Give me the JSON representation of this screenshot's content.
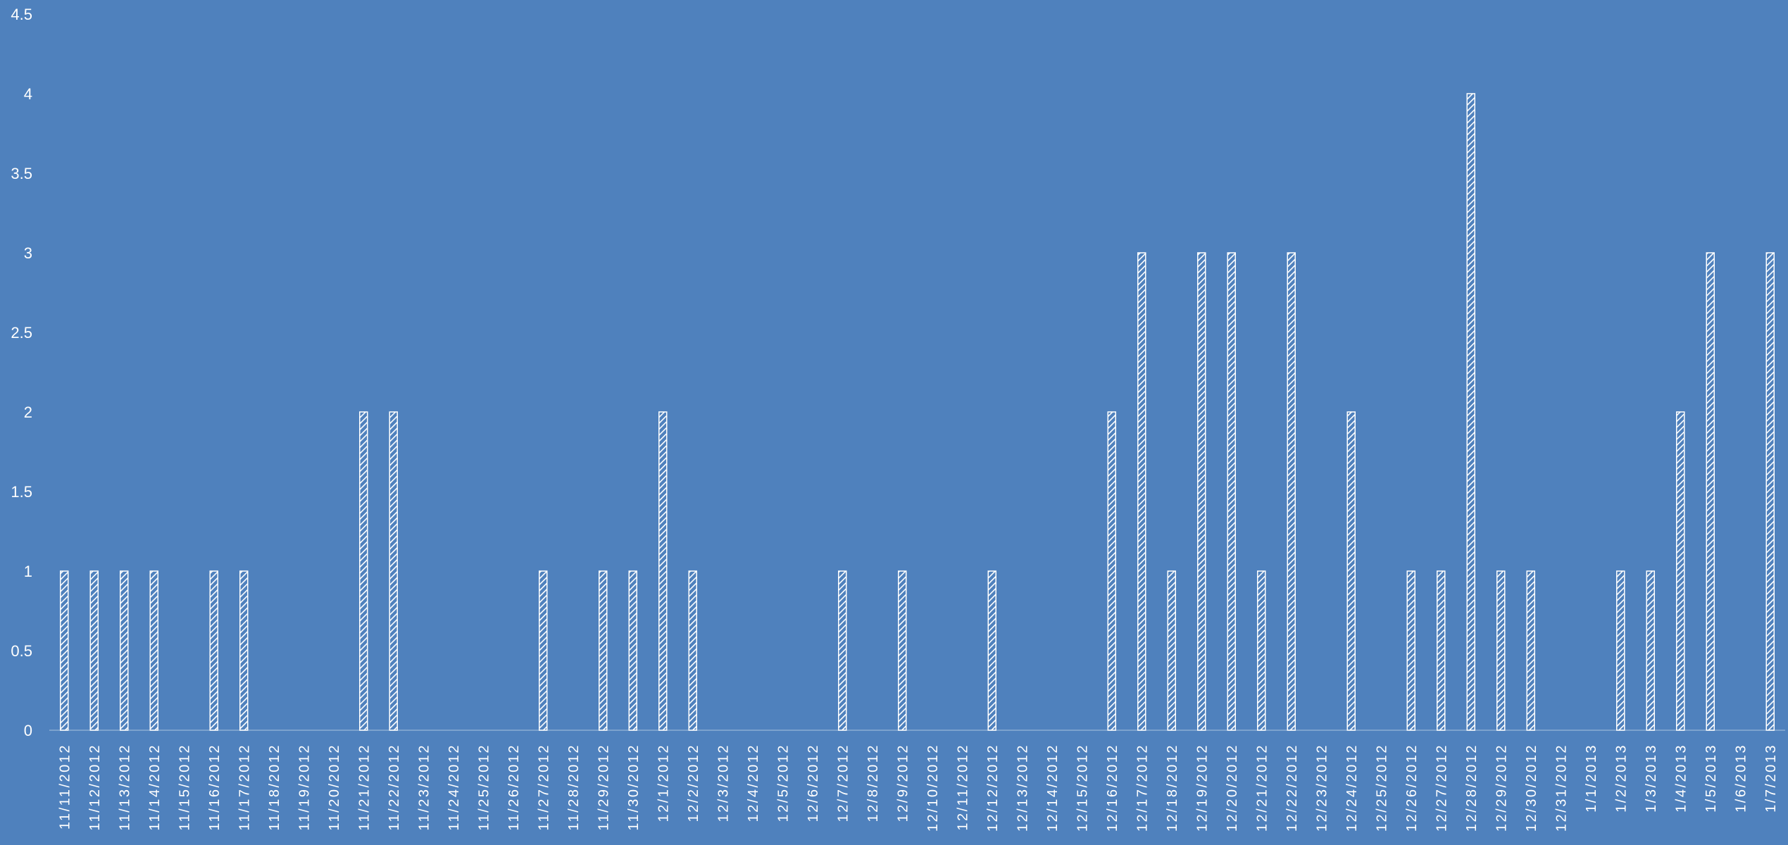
{
  "chart_data": {
    "type": "bar",
    "title": "",
    "xlabel": "",
    "ylabel": "",
    "ylim": [
      0,
      4.5
    ],
    "ytick_step": 0.5,
    "yticks": [
      "0",
      "0.5",
      "1",
      "1.5",
      "2",
      "2.5",
      "3",
      "3.5",
      "4",
      "4.5"
    ],
    "grid": false,
    "legend": "none",
    "categories": [
      "11/11/2012",
      "11/12/2012",
      "11/13/2012",
      "11/14/2012",
      "11/15/2012",
      "11/16/2012",
      "11/17/2012",
      "11/18/2012",
      "11/19/2012",
      "11/20/2012",
      "11/21/2012",
      "11/22/2012",
      "11/23/2012",
      "11/24/2012",
      "11/25/2012",
      "11/26/2012",
      "11/27/2012",
      "11/28/2012",
      "11/29/2012",
      "11/30/2012",
      "12/1/2012",
      "12/2/2012",
      "12/3/2012",
      "12/4/2012",
      "12/5/2012",
      "12/6/2012",
      "12/7/2012",
      "12/8/2012",
      "12/9/2012",
      "12/10/2012",
      "12/11/2012",
      "12/12/2012",
      "12/13/2012",
      "12/14/2012",
      "12/15/2012",
      "12/16/2012",
      "12/17/2012",
      "12/18/2012",
      "12/19/2012",
      "12/20/2012",
      "12/21/2012",
      "12/22/2012",
      "12/23/2012",
      "12/24/2012",
      "12/25/2012",
      "12/26/2012",
      "12/27/2012",
      "12/28/2012",
      "12/29/2012",
      "12/30/2012",
      "12/31/2012",
      "1/1/2013",
      "1/2/2013",
      "1/3/2013",
      "1/4/2013",
      "1/5/2013",
      "1/6/2013",
      "1/7/2013"
    ],
    "values": [
      1,
      1,
      1,
      1,
      0,
      1,
      1,
      0,
      0,
      0,
      2,
      2,
      0,
      0,
      0,
      0,
      1,
      0,
      1,
      1,
      2,
      1,
      0,
      0,
      0,
      0,
      1,
      0,
      1,
      0,
      0,
      1,
      0,
      0,
      0,
      2,
      3,
      1,
      3,
      3,
      1,
      3,
      0,
      2,
      0,
      1,
      1,
      4,
      1,
      1,
      0,
      0,
      1,
      1,
      2,
      3,
      0,
      3
    ],
    "colors": {
      "background": "#4f81bd",
      "bar_fill": "#4f81bd",
      "bar_pattern": "#ffffff",
      "text": "#ffffff"
    }
  }
}
